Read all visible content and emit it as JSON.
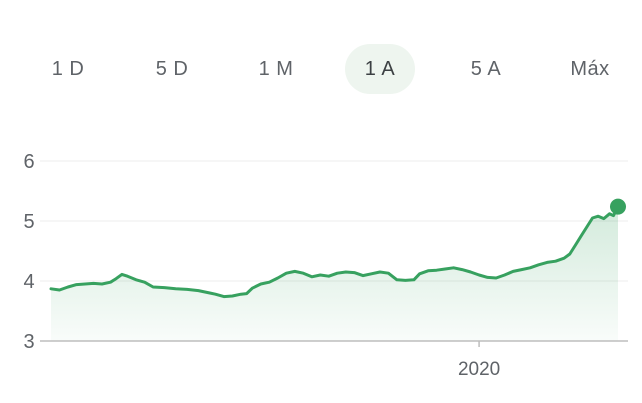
{
  "range_tabs": [
    {
      "label": "1 D",
      "active": false
    },
    {
      "label": "5 D",
      "active": false
    },
    {
      "label": "1 M",
      "active": false
    },
    {
      "label": "1 A",
      "active": true
    },
    {
      "label": "5 A",
      "active": false
    },
    {
      "label": "Máx",
      "active": false
    }
  ],
  "colors": {
    "line": "#37a15f",
    "area_top": "#37a15f",
    "grid": "#ececec",
    "baseline": "#bdbdbd",
    "active_tab_bg": "#eef5ef"
  },
  "chart_data": {
    "type": "area",
    "ylim": [
      3,
      6
    ],
    "yticks": [
      3,
      4,
      5,
      6
    ],
    "x_tick_labels": [
      {
        "value": 0.755,
        "label": "2020"
      }
    ],
    "grid": true,
    "end_marker": true,
    "series": [
      {
        "values": [
          [
            0.0,
            3.87
          ],
          [
            0.015,
            3.85
          ],
          [
            0.03,
            3.9
          ],
          [
            0.045,
            3.94
          ],
          [
            0.06,
            3.95
          ],
          [
            0.075,
            3.96
          ],
          [
            0.09,
            3.95
          ],
          [
            0.105,
            3.98
          ],
          [
            0.115,
            4.04
          ],
          [
            0.125,
            4.11
          ],
          [
            0.135,
            4.08
          ],
          [
            0.15,
            4.02
          ],
          [
            0.165,
            3.98
          ],
          [
            0.18,
            3.9
          ],
          [
            0.2,
            3.89
          ],
          [
            0.22,
            3.87
          ],
          [
            0.24,
            3.86
          ],
          [
            0.26,
            3.84
          ],
          [
            0.28,
            3.8
          ],
          [
            0.29,
            3.78
          ],
          [
            0.305,
            3.74
          ],
          [
            0.32,
            3.75
          ],
          [
            0.335,
            3.78
          ],
          [
            0.345,
            3.79
          ],
          [
            0.355,
            3.88
          ],
          [
            0.37,
            3.95
          ],
          [
            0.385,
            3.98
          ],
          [
            0.4,
            4.05
          ],
          [
            0.415,
            4.13
          ],
          [
            0.43,
            4.16
          ],
          [
            0.445,
            4.13
          ],
          [
            0.46,
            4.07
          ],
          [
            0.475,
            4.1
          ],
          [
            0.49,
            4.08
          ],
          [
            0.505,
            4.13
          ],
          [
            0.52,
            4.15
          ],
          [
            0.535,
            4.14
          ],
          [
            0.55,
            4.09
          ],
          [
            0.565,
            4.12
          ],
          [
            0.58,
            4.15
          ],
          [
            0.595,
            4.13
          ],
          [
            0.61,
            4.02
          ],
          [
            0.625,
            4.01
          ],
          [
            0.64,
            4.02
          ],
          [
            0.65,
            4.12
          ],
          [
            0.665,
            4.17
          ],
          [
            0.68,
            4.18
          ],
          [
            0.695,
            4.2
          ],
          [
            0.71,
            4.22
          ],
          [
            0.725,
            4.19
          ],
          [
            0.74,
            4.15
          ],
          [
            0.755,
            4.1
          ],
          [
            0.77,
            4.06
          ],
          [
            0.785,
            4.05
          ],
          [
            0.8,
            4.1
          ],
          [
            0.815,
            4.16
          ],
          [
            0.83,
            4.19
          ],
          [
            0.845,
            4.22
          ],
          [
            0.86,
            4.27
          ],
          [
            0.875,
            4.31
          ],
          [
            0.89,
            4.33
          ],
          [
            0.905,
            4.38
          ],
          [
            0.915,
            4.45
          ],
          [
            0.925,
            4.6
          ],
          [
            0.935,
            4.75
          ],
          [
            0.945,
            4.9
          ],
          [
            0.955,
            5.05
          ],
          [
            0.965,
            5.08
          ],
          [
            0.975,
            5.04
          ],
          [
            0.985,
            5.12
          ],
          [
            0.992,
            5.09
          ],
          [
            1.0,
            5.24
          ]
        ]
      }
    ]
  }
}
